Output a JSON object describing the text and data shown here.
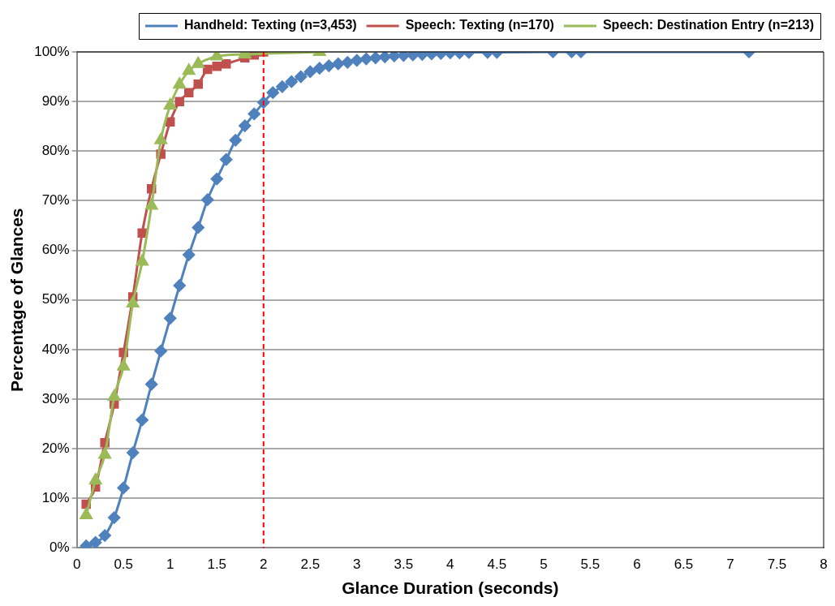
{
  "chart_data": {
    "type": "line",
    "xlabel": "Glance Duration (seconds)",
    "ylabel": "Percentage of Glances",
    "series": [
      {
        "name": "Handheld: Texting (n=3,453)",
        "color": "#4f81bd",
        "marker": "diamond",
        "x": [
          0.1,
          0.2,
          0.3,
          0.4,
          0.5,
          0.6,
          0.7,
          0.8,
          0.9,
          1.0,
          1.1,
          1.2,
          1.3,
          1.4,
          1.5,
          1.6,
          1.7,
          1.8,
          1.9,
          2.0,
          2.1,
          2.2,
          2.3,
          2.4,
          2.5,
          2.6,
          2.7,
          2.8,
          2.9,
          3.0,
          3.1,
          3.2,
          3.3,
          3.4,
          3.5,
          3.6,
          3.7,
          3.8,
          3.9,
          4.0,
          4.1,
          4.2,
          4.4,
          4.5,
          5.1,
          5.3,
          5.4,
          7.2
        ],
        "values": [
          0.4,
          1.1,
          2.5,
          6.1,
          12.1,
          19.2,
          25.8,
          33.0,
          39.7,
          46.3,
          52.9,
          59.1,
          64.6,
          70.2,
          74.4,
          78.3,
          82.2,
          85.1,
          87.5,
          89.8,
          91.8,
          93.0,
          94.0,
          95.0,
          96.0,
          96.7,
          97.2,
          97.6,
          97.9,
          98.3,
          98.6,
          98.8,
          99.0,
          99.2,
          99.3,
          99.4,
          99.5,
          99.6,
          99.7,
          99.8,
          99.8,
          99.9,
          99.9,
          99.9,
          100,
          100,
          100,
          100
        ]
      },
      {
        "name": "Speech: Texting (n=170)",
        "color": "#c0504d",
        "marker": "square",
        "x": [
          0.1,
          0.2,
          0.3,
          0.4,
          0.5,
          0.6,
          0.7,
          0.8,
          0.9,
          1.0,
          1.1,
          1.2,
          1.3,
          1.4,
          1.5,
          1.6,
          1.8,
          1.9,
          2.0
        ],
        "values": [
          8.8,
          12.3,
          21.2,
          29.0,
          39.4,
          50.6,
          63.5,
          72.4,
          79.4,
          85.9,
          90.0,
          91.8,
          93.5,
          96.5,
          97.1,
          97.6,
          98.8,
          99.4,
          100
        ]
      },
      {
        "name": "Speech: Destination Entry (n=213)",
        "color": "#9bbb59",
        "marker": "triangle",
        "x": [
          0.1,
          0.2,
          0.3,
          0.4,
          0.5,
          0.6,
          0.7,
          0.8,
          0.9,
          1.0,
          1.1,
          1.2,
          1.3,
          1.5,
          1.8,
          2.6
        ],
        "values": [
          6.6,
          13.6,
          18.8,
          30.5,
          36.6,
          49.3,
          57.7,
          69.0,
          82.2,
          89.2,
          93.4,
          96.2,
          97.6,
          99.1,
          99.5,
          100
        ]
      }
    ],
    "xlim": [
      0,
      8
    ],
    "xticks": [
      0,
      0.5,
      1,
      1.5,
      2,
      2.5,
      3,
      3.5,
      4,
      4.5,
      5,
      5.5,
      6,
      6.5,
      7,
      7.5,
      8
    ],
    "ylim": [
      0,
      100
    ],
    "yticks": [
      {
        "value": 0,
        "label": "0%"
      },
      {
        "value": 10,
        "label": "10%"
      },
      {
        "value": 20,
        "label": "20%"
      },
      {
        "value": 30,
        "label": "30%"
      },
      {
        "value": 40,
        "label": "40%"
      },
      {
        "value": 50,
        "label": "50%"
      },
      {
        "value": 60,
        "label": "60%"
      },
      {
        "value": 70,
        "label": "70%"
      },
      {
        "value": 80,
        "label": "80%"
      },
      {
        "value": 90,
        "label": "90%"
      },
      {
        "value": 100,
        "label": "100%"
      }
    ],
    "grid": "y",
    "legend": "top",
    "ref_lines": [
      {
        "axis": "x",
        "value": 2,
        "color": "#ff0000",
        "line_style": "dashed"
      }
    ]
  }
}
